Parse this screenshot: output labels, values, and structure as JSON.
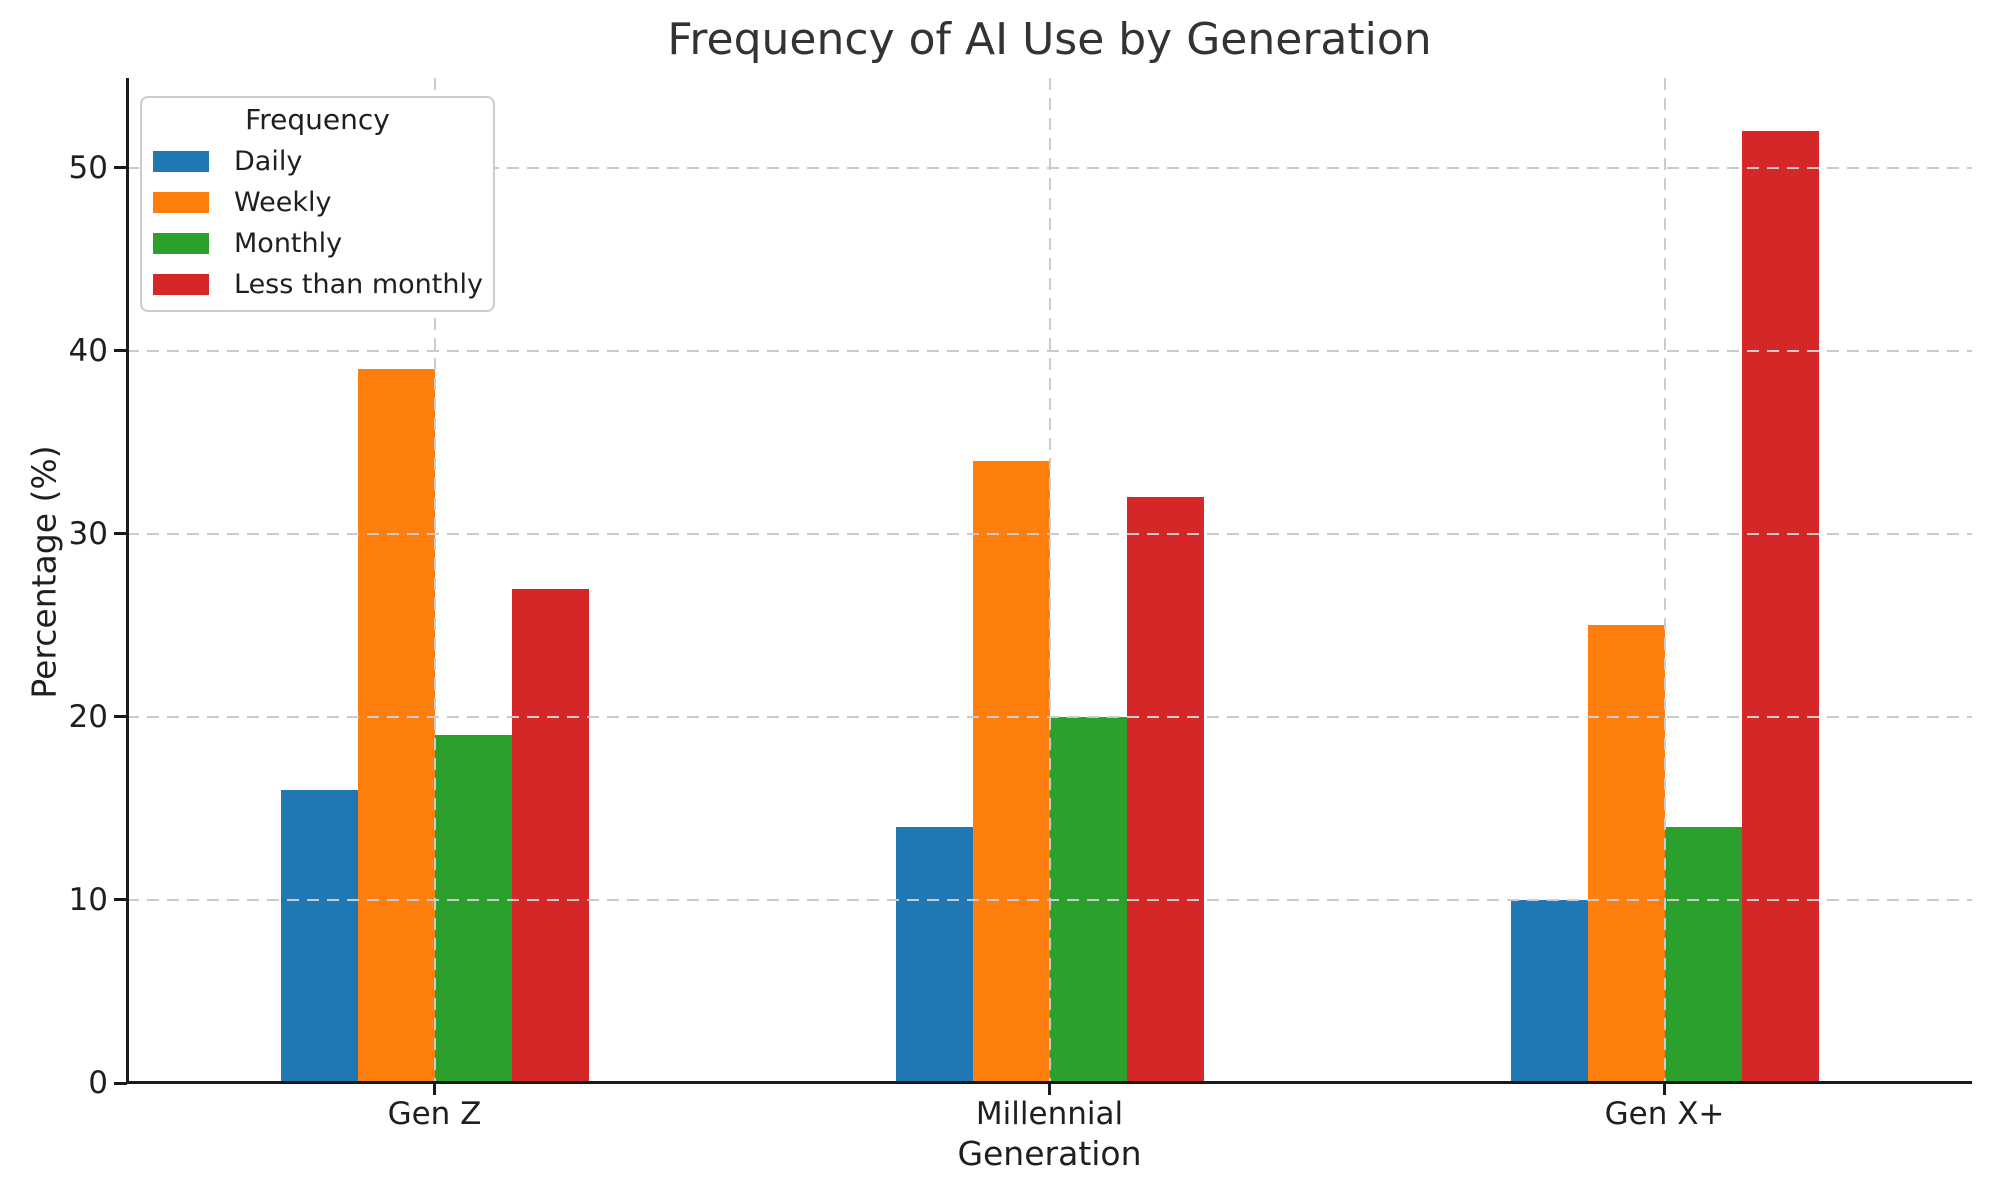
{
  "figure": {
    "background": "#ffffff",
    "text_color": "#1f1f1f",
    "title_color": "#333333",
    "grid_color": "#cbcbcb",
    "spine_color": "#1a1a1a"
  },
  "chart_data": {
    "type": "bar",
    "title": "Frequency of AI Use by Generation",
    "xlabel": "Generation",
    "ylabel": "Percentage (%)",
    "categories": [
      "Gen Z",
      "Millennial",
      "Gen X+"
    ],
    "series": [
      {
        "name": "Daily",
        "color": "#1f77b4",
        "values": [
          16,
          14,
          10
        ]
      },
      {
        "name": "Weekly",
        "color": "#ff7f0e",
        "values": [
          39,
          34,
          25
        ]
      },
      {
        "name": "Monthly",
        "color": "#2ca02c",
        "values": [
          19,
          20,
          14
        ]
      },
      {
        "name": "Less than monthly",
        "color": "#d62728",
        "values": [
          27,
          32,
          52
        ]
      }
    ],
    "yticks": [
      0,
      10,
      20,
      30,
      40,
      50
    ],
    "ylim": [
      0,
      54.9
    ],
    "grid": {
      "show": true,
      "axis": "both",
      "style": "dashed"
    },
    "legend": {
      "title": "Frequency",
      "position": "upper left"
    }
  }
}
